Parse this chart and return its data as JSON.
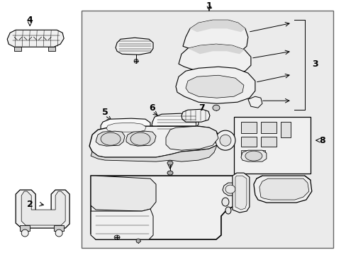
{
  "bg": "#ffffff",
  "box_bg": "#e8e8e8",
  "lc": "#000000",
  "part_fc": "#ffffff",
  "part_shade": "#d0d0d0",
  "part_dark": "#888888",
  "figsize": [
    4.89,
    3.6
  ],
  "dpi": 100,
  "xlim": [
    0,
    489
  ],
  "ylim": [
    0,
    360
  ]
}
